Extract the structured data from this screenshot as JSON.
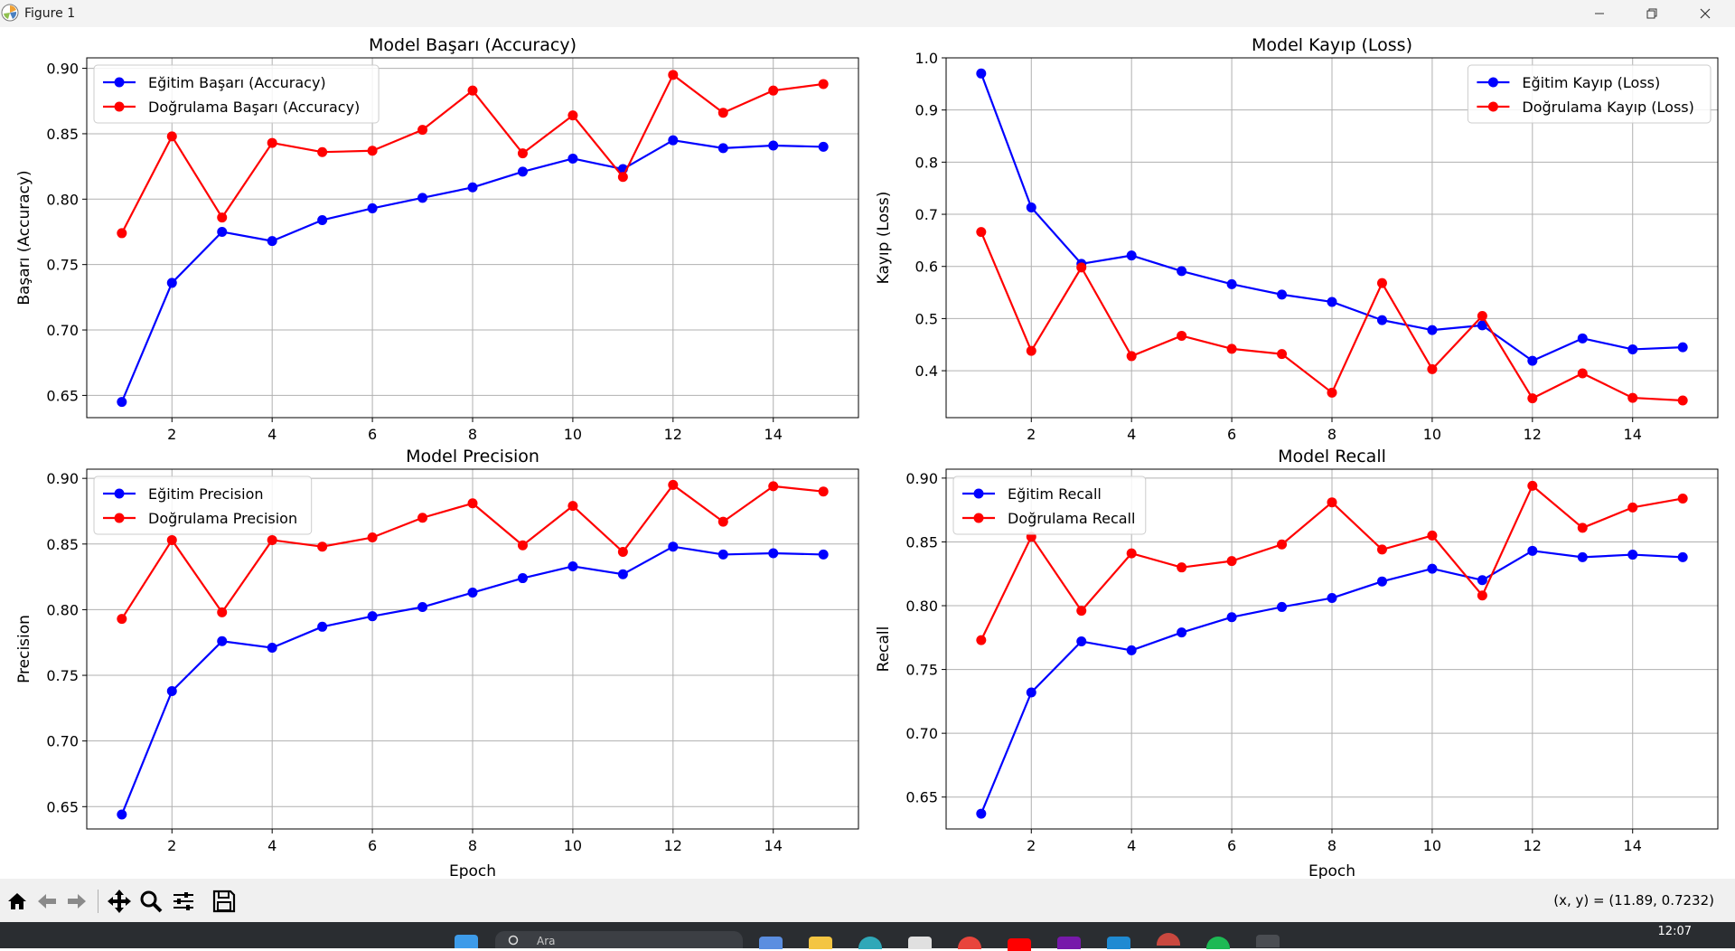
{
  "window": {
    "title": "Figure 1"
  },
  "toolbar": {
    "buttons": [
      "home-icon",
      "back-arrow-icon",
      "forward-arrow-icon",
      "pan-move-icon",
      "zoom-magnifier-icon",
      "configure-subplots-icon",
      "save-floppy-icon"
    ],
    "coord_readout": "(x, y) = (11.89, 0.7232)"
  },
  "taskbar": {
    "search_text": "Ara",
    "clock": "12:07",
    "icons": [
      "windows-start-icon",
      "copilot-icon",
      "file-explorer-icon",
      "edge-browser-icon",
      "microsoft-store-icon",
      "chrome-icon",
      "youtube-icon",
      "onenote-icon",
      "vscode-icon",
      "chrome-profile-icon",
      "spotify-icon",
      "matplotlib-app-icon"
    ]
  },
  "colors": {
    "train": "#0000ff",
    "validation": "#ff0000",
    "grid": "#b0b0b0"
  },
  "chart_data": [
    {
      "type": "line",
      "title": "Model Başarı (Accuracy)",
      "xlabel": "",
      "ylabel": "Başarı (Accuracy)",
      "x": [
        1,
        2,
        3,
        4,
        5,
        6,
        7,
        8,
        9,
        10,
        11,
        12,
        13,
        14,
        15
      ],
      "xlim": [
        0.3,
        15.7
      ],
      "ylim": [
        0.633,
        0.908
      ],
      "xticks": [
        2,
        4,
        6,
        8,
        10,
        12,
        14
      ],
      "yticks": [
        0.65,
        0.7,
        0.75,
        0.8,
        0.85,
        0.9
      ],
      "ytick_labels": [
        "0.65",
        "0.70",
        "0.75",
        "0.80",
        "0.85",
        "0.90"
      ],
      "grid": true,
      "legend_position": "upper-left",
      "series": [
        {
          "name": "Eğitim Başarı (Accuracy)",
          "color": "#0000ff",
          "values": [
            0.645,
            0.736,
            0.775,
            0.768,
            0.784,
            0.793,
            0.801,
            0.809,
            0.821,
            0.831,
            0.823,
            0.845,
            0.839,
            0.841,
            0.84
          ]
        },
        {
          "name": "Doğrulama Başarı (Accuracy)",
          "color": "#ff0000",
          "values": [
            0.774,
            0.848,
            0.786,
            0.843,
            0.836,
            0.837,
            0.853,
            0.883,
            0.835,
            0.864,
            0.817,
            0.895,
            0.866,
            0.883,
            0.888
          ]
        }
      ]
    },
    {
      "type": "line",
      "title": "Model Kayıp (Loss)",
      "xlabel": "",
      "ylabel": "Kayıp (Loss)",
      "x": [
        1,
        2,
        3,
        4,
        5,
        6,
        7,
        8,
        9,
        10,
        11,
        12,
        13,
        14,
        15
      ],
      "xlim": [
        0.3,
        15.7
      ],
      "ylim": [
        0.31,
        1.0
      ],
      "xticks": [
        2,
        4,
        6,
        8,
        10,
        12,
        14
      ],
      "yticks": [
        0.4,
        0.5,
        0.6,
        0.7,
        0.8,
        0.9,
        1.0
      ],
      "ytick_labels": [
        "0.4",
        "0.5",
        "0.6",
        "0.7",
        "0.8",
        "0.9",
        "1.0"
      ],
      "grid": true,
      "legend_position": "upper-right",
      "series": [
        {
          "name": "Eğitim Kayıp (Loss)",
          "color": "#0000ff",
          "values": [
            0.97,
            0.713,
            0.605,
            0.621,
            0.591,
            0.566,
            0.546,
            0.532,
            0.497,
            0.478,
            0.487,
            0.419,
            0.462,
            0.441,
            0.445
          ]
        },
        {
          "name": "Doğrulama Kayıp (Loss)",
          "color": "#ff0000",
          "values": [
            0.666,
            0.438,
            0.598,
            0.428,
            0.467,
            0.442,
            0.432,
            0.358,
            0.568,
            0.403,
            0.505,
            0.347,
            0.395,
            0.348,
            0.343
          ]
        }
      ]
    },
    {
      "type": "line",
      "title": "Model Precision",
      "xlabel": "Epoch",
      "ylabel": "Precision",
      "x": [
        1,
        2,
        3,
        4,
        5,
        6,
        7,
        8,
        9,
        10,
        11,
        12,
        13,
        14,
        15
      ],
      "xlim": [
        0.3,
        15.7
      ],
      "ylim": [
        0.633,
        0.907
      ],
      "xticks": [
        2,
        4,
        6,
        8,
        10,
        12,
        14
      ],
      "yticks": [
        0.65,
        0.7,
        0.75,
        0.8,
        0.85,
        0.9
      ],
      "ytick_labels": [
        "0.65",
        "0.70",
        "0.75",
        "0.80",
        "0.85",
        "0.90"
      ],
      "grid": true,
      "legend_position": "upper-left",
      "series": [
        {
          "name": "Eğitim Precision",
          "color": "#0000ff",
          "values": [
            0.644,
            0.738,
            0.776,
            0.771,
            0.787,
            0.795,
            0.802,
            0.813,
            0.824,
            0.833,
            0.827,
            0.848,
            0.842,
            0.843,
            0.842
          ]
        },
        {
          "name": "Doğrulama Precision",
          "color": "#ff0000",
          "values": [
            0.793,
            0.853,
            0.798,
            0.853,
            0.848,
            0.855,
            0.87,
            0.881,
            0.849,
            0.879,
            0.844,
            0.895,
            0.867,
            0.894,
            0.89
          ]
        }
      ]
    },
    {
      "type": "line",
      "title": "Model Recall",
      "xlabel": "Epoch",
      "ylabel": "Recall",
      "x": [
        1,
        2,
        3,
        4,
        5,
        6,
        7,
        8,
        9,
        10,
        11,
        12,
        13,
        14,
        15
      ],
      "xlim": [
        0.3,
        15.7
      ],
      "ylim": [
        0.625,
        0.907
      ],
      "xticks": [
        2,
        4,
        6,
        8,
        10,
        12,
        14
      ],
      "yticks": [
        0.65,
        0.7,
        0.75,
        0.8,
        0.85,
        0.9
      ],
      "ytick_labels": [
        "0.65",
        "0.70",
        "0.75",
        "0.80",
        "0.85",
        "0.90"
      ],
      "grid": true,
      "legend_position": "upper-left",
      "series": [
        {
          "name": "Eğitim Recall",
          "color": "#0000ff",
          "values": [
            0.637,
            0.732,
            0.772,
            0.765,
            0.779,
            0.791,
            0.799,
            0.806,
            0.819,
            0.829,
            0.82,
            0.843,
            0.838,
            0.84,
            0.838
          ]
        },
        {
          "name": "Doğrulama Recall",
          "color": "#ff0000",
          "values": [
            0.773,
            0.854,
            0.796,
            0.841,
            0.83,
            0.835,
            0.848,
            0.881,
            0.844,
            0.855,
            0.808,
            0.894,
            0.861,
            0.877,
            0.884
          ]
        }
      ]
    }
  ]
}
